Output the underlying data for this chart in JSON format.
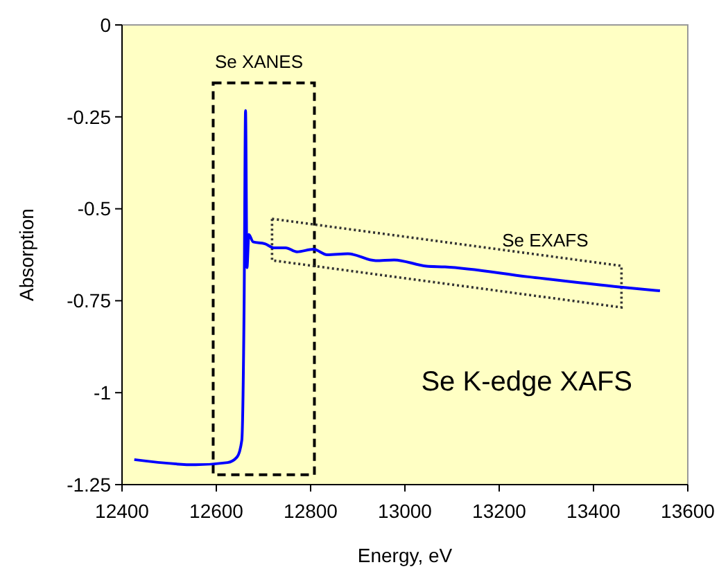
{
  "chart_data": {
    "type": "line",
    "xlabel": "Energy, eV",
    "ylabel": "Absorption",
    "x": [
      12426,
      12556,
      12624,
      12644,
      12654,
      12659,
      12662,
      12665,
      12669,
      12678,
      12703,
      12722,
      12747,
      12771,
      12806,
      12835,
      12879,
      12938,
      12977,
      13046,
      13085,
      13262,
      13458,
      13541
    ],
    "series": [
      {
        "color": "#0000ff",
        "values": [
          -1.182,
          -1.196,
          -1.19,
          -1.175,
          -1.13,
          -0.753,
          -0.233,
          -0.66,
          -0.57,
          -0.59,
          -0.595,
          -0.606,
          -0.606,
          -0.617,
          -0.61,
          -0.625,
          -0.622,
          -0.641,
          -0.639,
          -0.656,
          -0.658,
          -0.685,
          -0.713,
          -0.723
        ]
      }
    ],
    "xlim": [
      12400,
      13600
    ],
    "xticks": [
      12400,
      12600,
      12800,
      13000,
      13200,
      13400,
      13600
    ],
    "ylim": [
      -1.25,
      0
    ],
    "yticks": [
      -1.25,
      -1,
      -0.75,
      -0.5,
      -0.25,
      0
    ],
    "annotations": [
      "Se XANES",
      "Se EXAFS",
      "Se K-edge XAFS"
    ]
  }
}
